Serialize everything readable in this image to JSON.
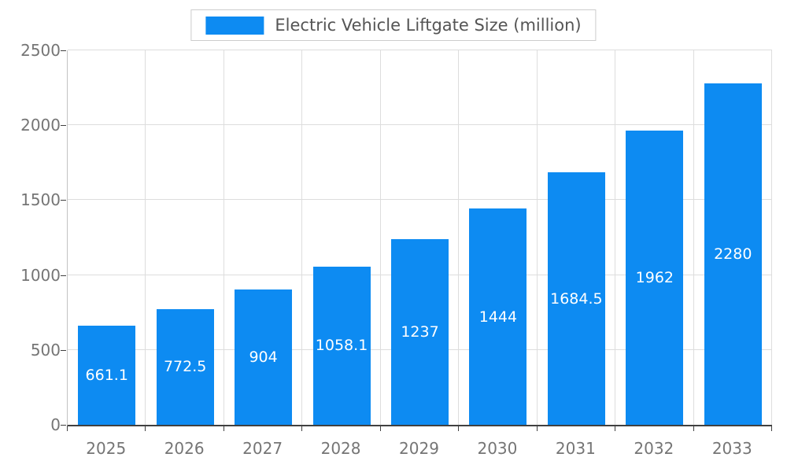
{
  "chart_data": {
    "type": "bar",
    "title": "Electric Vehicle Liftgate Size (million)",
    "categories": [
      "2025",
      "2026",
      "2027",
      "2028",
      "2029",
      "2030",
      "2031",
      "2032",
      "2033"
    ],
    "values": [
      661.1,
      772.5,
      904,
      1058.1,
      1237,
      1444,
      1684.5,
      1962,
      2280
    ],
    "value_labels": [
      "661.1",
      "772.5",
      "904",
      "1058.1",
      "1237",
      "1444",
      "1684.5",
      "1962",
      "2280"
    ],
    "xlabel": "",
    "ylabel": "",
    "ylim": [
      0,
      2500
    ],
    "yticks": [
      0,
      500,
      1000,
      1500,
      2000,
      2500
    ],
    "grid": true,
    "legend_position": "top-center",
    "bar_color": "#0d8bf2",
    "value_label_color": "#ffffff",
    "axis_text_color": "#757575",
    "grid_color": "#dddddd"
  }
}
